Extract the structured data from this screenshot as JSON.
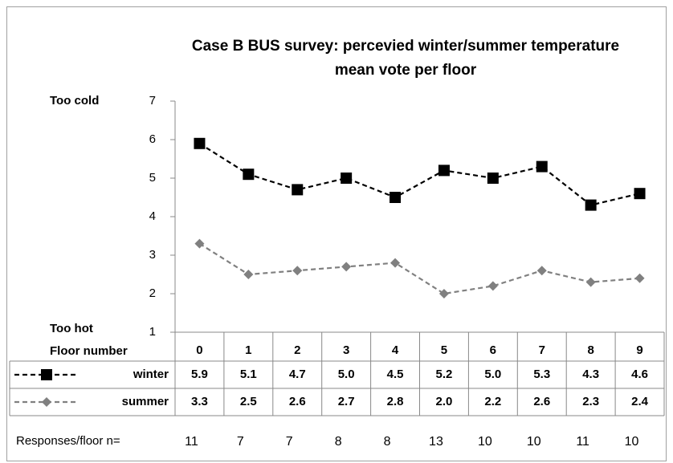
{
  "chart_data": {
    "type": "line",
    "title": [
      "Case B BUS survey: percevied winter/summer temperature",
      "mean vote per floor"
    ],
    "annotations": {
      "top": "Too cold",
      "bottom": "Too hot"
    },
    "x_label": "Floor number",
    "categories": [
      "0",
      "1",
      "2",
      "3",
      "4",
      "5",
      "6",
      "7",
      "8",
      "9"
    ],
    "series": [
      {
        "name": "winter",
        "color": "#000000",
        "marker": "square",
        "values": [
          5.9,
          5.1,
          4.7,
          5.0,
          4.5,
          5.2,
          5.0,
          5.3,
          4.3,
          4.6
        ],
        "value_labels": [
          "5.9",
          "5.1",
          "4.7",
          "5.0",
          "4.5",
          "5.2",
          "5.0",
          "5.3",
          "4.3",
          "4.6"
        ]
      },
      {
        "name": "summer",
        "color": "#808080",
        "marker": "diamond",
        "values": [
          3.3,
          2.5,
          2.6,
          2.7,
          2.8,
          2.0,
          2.2,
          2.6,
          2.3,
          2.4
        ],
        "value_labels": [
          "3.3",
          "2.5",
          "2.6",
          "2.7",
          "2.8",
          "2.0",
          "2.2",
          "2.6",
          "2.3",
          "2.4"
        ]
      }
    ],
    "ylim": [
      1,
      7
    ],
    "yticks": [
      1,
      2,
      3,
      4,
      5,
      6,
      7
    ],
    "grid": false,
    "responses": {
      "label": "Responses/floor n=",
      "values": [
        11,
        7,
        7,
        8,
        8,
        13,
        10,
        10,
        11,
        10
      ]
    }
  }
}
